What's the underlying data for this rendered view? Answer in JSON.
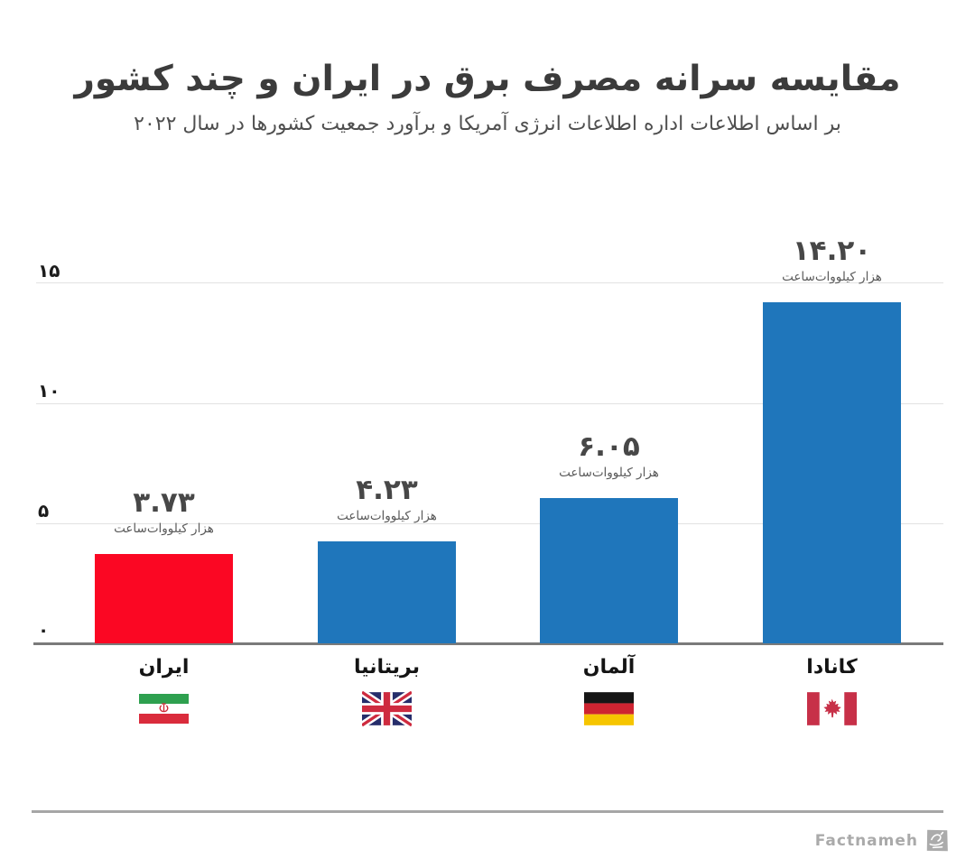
{
  "title": "مقایسه سرانه مصرف برق در ایران و چند کشور",
  "subtitle": "بر اساس اطلاعات اداره اطلاعات انرژی آمریکا و برآورد جمعیت کشورها در سال ۲۰۲۲",
  "footer": {
    "brand": "Factnameh",
    "logo_icon": "factnameh-stamp-icon"
  },
  "colors": {
    "iran_bar": "#fb0723",
    "default_bar": "#1f76bb",
    "title_text": "#3b3b3b",
    "grid": "#e2e2e2",
    "baseline": "#7a7a7a"
  },
  "chart_data": {
    "type": "bar",
    "categories": [
      "ایران",
      "بریتانیا",
      "آلمان",
      "کانادا"
    ],
    "values": [
      3.73,
      4.23,
      6.05,
      14.2
    ],
    "value_labels": [
      "۳.۷۳",
      "۴.۲۳",
      "۶.۰۵",
      "۱۴.۲۰"
    ],
    "unit_label": "هزار کیلووات‌ساعت",
    "bar_colors": [
      "#fb0723",
      "#1f76bb",
      "#1f76bb",
      "#1f76bb"
    ],
    "flag_icons": [
      "iran-flag-icon",
      "uk-flag-icon",
      "germany-flag-icon",
      "canada-flag-icon"
    ],
    "title": "مقایسه سرانه مصرف برق در ایران و چند کشور",
    "xlabel": "",
    "ylabel": "",
    "ylim": [
      0,
      15
    ],
    "yticks": [
      0,
      5,
      10,
      15
    ],
    "ytick_labels": [
      "۰",
      "۵",
      "۱۰",
      "۱۵"
    ],
    "grid": true,
    "legend": false
  }
}
